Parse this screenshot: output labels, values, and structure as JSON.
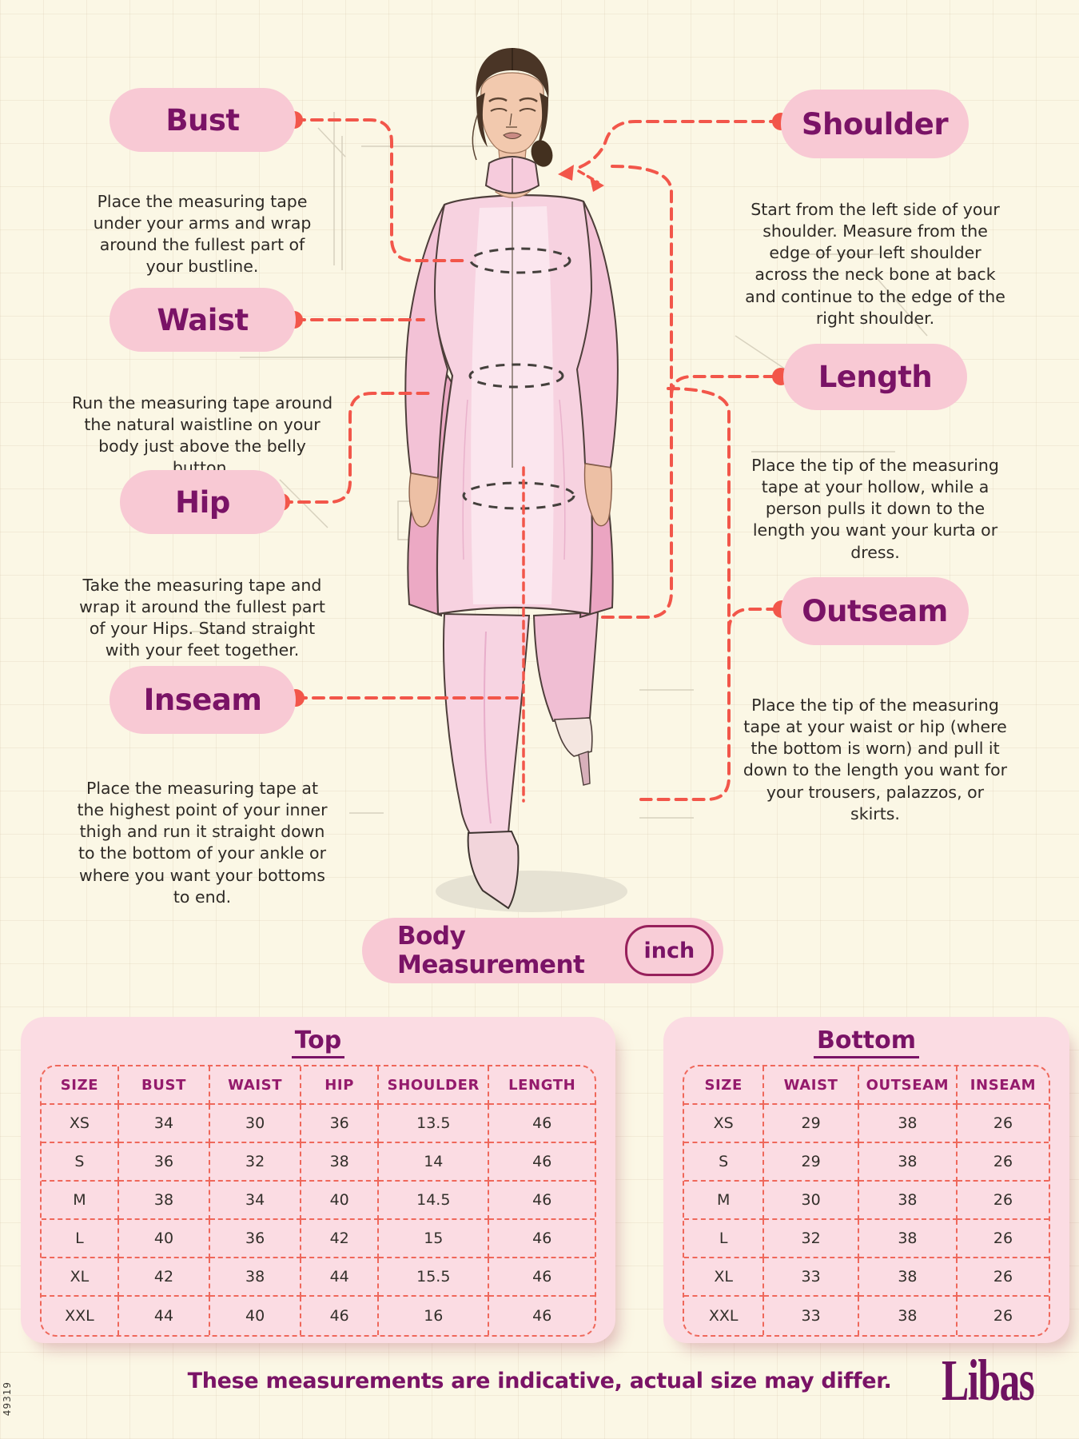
{
  "palette": {
    "background": "#FBF7E5",
    "pill_pink": "#F8C9D4",
    "heading_purple": "#7A1366",
    "leader_red": "#F2564A",
    "table_panel_pink": "#FBDCE3",
    "table_dash_red": "#EF685B",
    "body_text": "#2E2A26",
    "brand_purple": "#6E1260"
  },
  "side_code": "49319",
  "callouts": {
    "bust": {
      "label": "Bust",
      "desc": "Place the measuring tape under your arms and wrap around the fullest part of your bustline."
    },
    "waist": {
      "label": "Waist",
      "desc": "Run the measuring tape around the natural waistline on your body just above the belly button."
    },
    "hip": {
      "label": "Hip",
      "desc": "Take the measuring tape and wrap it around the fullest part of your Hips. Stand straight with your feet together."
    },
    "inseam": {
      "label": "Inseam",
      "desc": "Place the measuring tape at the highest point of your inner thigh and run it straight down to the bottom of your ankle or where you want your bottoms to end."
    },
    "shoulder": {
      "label": "Shoulder",
      "desc": "Start from the left side of your shoulder. Measure from the edge of your left shoulder across the neck bone at back and continue to the edge of the right shoulder."
    },
    "length": {
      "label": "Length",
      "desc": "Place the tip of the measuring tape at your hollow, while a person pulls it down to the length you want your kurta or dress."
    },
    "outseam": {
      "label": "Outseam",
      "desc": "Place the tip of the measuring tape at your waist or hip (where the bottom is worn) and pull it down to the length you want for your trousers, palazzos, or skirts."
    }
  },
  "badge": {
    "label": "Body Measurement",
    "unit": "inch"
  },
  "tables": [
    {
      "title": "Top",
      "headers": [
        "SIZE",
        "BUST",
        "WAIST",
        "HIP",
        "SHOULDER",
        "LENGTH"
      ],
      "rows": [
        [
          "XS",
          "34",
          "30",
          "36",
          "13.5",
          "46"
        ],
        [
          "S",
          "36",
          "32",
          "38",
          "14",
          "46"
        ],
        [
          "M",
          "38",
          "34",
          "40",
          "14.5",
          "46"
        ],
        [
          "L",
          "40",
          "36",
          "42",
          "15",
          "46"
        ],
        [
          "XL",
          "42",
          "38",
          "44",
          "15.5",
          "46"
        ],
        [
          "XXL",
          "44",
          "40",
          "46",
          "16",
          "46"
        ]
      ]
    },
    {
      "title": "Bottom",
      "headers": [
        "SIZE",
        "WAIST",
        "OUTSEAM",
        "INSEAM"
      ],
      "rows": [
        [
          "XS",
          "29",
          "38",
          "26"
        ],
        [
          "S",
          "29",
          "38",
          "26"
        ],
        [
          "M",
          "30",
          "38",
          "26"
        ],
        [
          "L",
          "32",
          "38",
          "26"
        ],
        [
          "XL",
          "33",
          "38",
          "26"
        ],
        [
          "XXL",
          "33",
          "38",
          "26"
        ]
      ]
    }
  ],
  "footer": {
    "note": "These measurements are indicative, actual size may differ.",
    "brand": "Libas"
  }
}
